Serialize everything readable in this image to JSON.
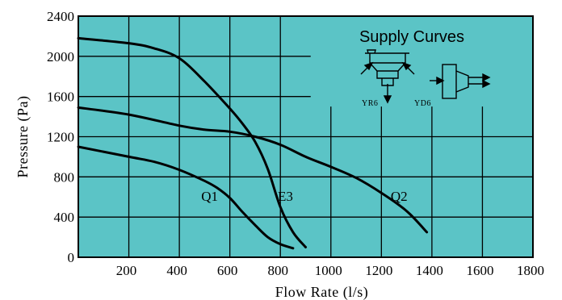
{
  "colors": {
    "plot_background": "#5bc4c6",
    "grid": "#000000",
    "curve": "#000000"
  },
  "chart_data": {
    "type": "line",
    "title": "Supply Curves",
    "xlabel": "Flow Rate (l/s)",
    "ylabel": "Pressure (Pa)",
    "xlim": [
      0,
      1800
    ],
    "ylim": [
      0,
      2400
    ],
    "x_ticks": [
      200,
      400,
      600,
      800,
      1000,
      1200,
      1400,
      1600,
      1800
    ],
    "y_ticks": [
      0,
      400,
      800,
      1200,
      1600,
      2000,
      2400
    ],
    "x_tick_labels": [
      "200",
      "400",
      "600",
      "800",
      "1000",
      "1200",
      "1400",
      "1600",
      "1800"
    ],
    "y_tick_labels": [
      "0",
      "400",
      "800",
      "1200",
      "1600",
      "2000",
      "2400"
    ],
    "grid": true,
    "series": [
      {
        "name": "Q1",
        "points": [
          [
            0,
            1100
          ],
          [
            200,
            1000
          ],
          [
            300,
            950
          ],
          [
            400,
            870
          ],
          [
            500,
            760
          ],
          [
            550,
            690
          ],
          [
            600,
            590
          ],
          [
            650,
            450
          ],
          [
            700,
            320
          ],
          [
            750,
            200
          ],
          [
            800,
            130
          ],
          [
            850,
            90
          ]
        ]
      },
      {
        "name": "E3",
        "points": [
          [
            0,
            2180
          ],
          [
            200,
            2130
          ],
          [
            300,
            2080
          ],
          [
            400,
            1980
          ],
          [
            500,
            1750
          ],
          [
            600,
            1480
          ],
          [
            650,
            1330
          ],
          [
            700,
            1150
          ],
          [
            750,
            880
          ],
          [
            800,
            500
          ],
          [
            850,
            250
          ],
          [
            900,
            100
          ]
        ]
      },
      {
        "name": "Q2",
        "points": [
          [
            0,
            1490
          ],
          [
            200,
            1420
          ],
          [
            400,
            1310
          ],
          [
            500,
            1270
          ],
          [
            600,
            1250
          ],
          [
            700,
            1200
          ],
          [
            800,
            1120
          ],
          [
            900,
            1000
          ],
          [
            1000,
            900
          ],
          [
            1100,
            790
          ],
          [
            1200,
            640
          ],
          [
            1300,
            460
          ],
          [
            1380,
            250
          ]
        ]
      }
    ],
    "series_label_positions": [
      {
        "name": "Q1",
        "x": 520,
        "y": 560
      },
      {
        "name": "E3",
        "x": 820,
        "y": 560
      },
      {
        "name": "Q2",
        "x": 1270,
        "y": 560
      }
    ],
    "icons": [
      {
        "name": "YR6",
        "label": "YR6"
      },
      {
        "name": "YD6",
        "label": "YD6"
      }
    ]
  }
}
